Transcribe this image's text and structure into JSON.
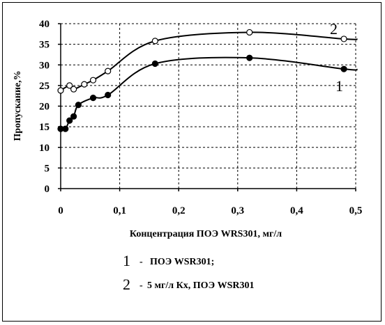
{
  "chart_data": {
    "type": "line",
    "xlabel": "Концентрация ПОЭ WRS301, мг/л",
    "ylabel": "Пропускание,%",
    "xlim": [
      0,
      0.5
    ],
    "ylim": [
      0,
      40
    ],
    "x_ticks": [
      "0",
      "0,1",
      "0,2",
      "0,3",
      "0,4",
      "0,5"
    ],
    "y_ticks": [
      "0",
      "5",
      "10",
      "15",
      "20",
      "25",
      "30",
      "35",
      "40"
    ],
    "grid": "dashed",
    "series": [
      {
        "name": "1",
        "marker": "filled-circle",
        "points": [
          [
            0.0,
            14.5
          ],
          [
            0.008,
            14.5
          ],
          [
            0.015,
            16.5
          ],
          [
            0.022,
            17.5
          ],
          [
            0.03,
            20.3
          ],
          [
            0.055,
            22.0
          ],
          [
            0.08,
            22.7
          ],
          [
            0.16,
            30.3
          ],
          [
            0.32,
            31.7
          ],
          [
            0.48,
            29.0
          ]
        ]
      },
      {
        "name": "2",
        "marker": "open-circle",
        "points": [
          [
            0.0,
            23.8
          ],
          [
            0.015,
            25.0
          ],
          [
            0.022,
            24.1
          ],
          [
            0.04,
            25.3
          ],
          [
            0.055,
            26.3
          ],
          [
            0.08,
            28.5
          ],
          [
            0.16,
            35.8
          ],
          [
            0.32,
            37.9
          ],
          [
            0.48,
            36.3
          ]
        ]
      }
    ],
    "curve_labels": [
      {
        "series": "1",
        "text": "1"
      },
      {
        "series": "2",
        "text": "2"
      }
    ],
    "legend": [
      {
        "number": "1",
        "dash": "-",
        "text": "ПОЭ WSR301;"
      },
      {
        "number": "2",
        "dash": "-",
        "text": "5 мг/л Кх, ПОЭ WSR301"
      }
    ]
  }
}
